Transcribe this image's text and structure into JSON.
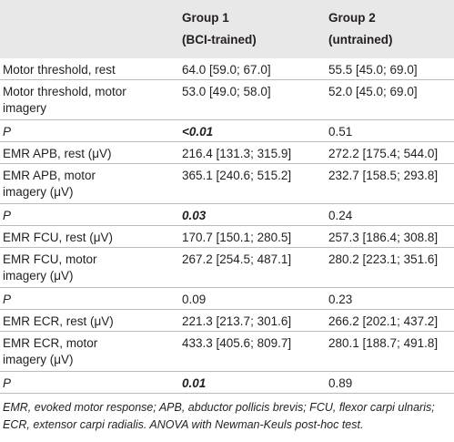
{
  "header": {
    "group1_line1": "Group 1",
    "group1_line2": "(BCI-trained)",
    "group2_line1": "Group 2",
    "group2_line2": "(untrained)"
  },
  "rows": [
    {
      "label": "Motor threshold, rest",
      "g1": "64.0 [59.0; 67.0]",
      "g2": "55.5 [45.0; 69.0]"
    },
    {
      "label": "Motor threshold, motor",
      "label2": "imagery",
      "g1": "53.0 [49.0; 58.0]",
      "g2": "52.0 [45.0; 69.0]"
    },
    {
      "label": "P",
      "g1": "<0.01",
      "g2": "0.51"
    },
    {
      "label": "EMR APB, rest (μV)",
      "g1": "216.4 [131.3; 315.9]",
      "g2": "272.2 [175.4; 544.0]"
    },
    {
      "label": "EMR APB, motor",
      "label2": "imagery (μV)",
      "g1": "365.1 [240.6; 515.2]",
      "g2": "232.7 [158.5; 293.8]"
    },
    {
      "label": "P",
      "g1": "0.03",
      "g2": "0.24"
    },
    {
      "label": "EMR FCU, rest (μV)",
      "g1": "170.7 [150.1; 280.5]",
      "g2": "257.3 [186.4; 308.8]"
    },
    {
      "label": "EMR FCU, motor",
      "label2": "imagery (μV)",
      "g1": "267.2 [254.5; 487.1]",
      "g2": "280.2 [223.1; 351.6]"
    },
    {
      "label": "P",
      "g1": "0.09",
      "g2": "0.23"
    },
    {
      "label": "EMR ECR, rest (μV)",
      "g1": "221.3 [213.7; 301.6]",
      "g2": "266.2 [202.1; 437.2]"
    },
    {
      "label": "EMR ECR, motor",
      "label2": "imagery (μV)",
      "g1": "433.3 [405.6; 809.7]",
      "g2": "280.1 [188.7; 491.8]"
    },
    {
      "label": "P",
      "g1": "0.01",
      "g2": "0.89"
    }
  ],
  "footnote": "EMR, evoked motor response; APB, abductor pollicis brevis; FCU, flexor carpi ulnaris; ECR, extensor carpi radialis. ANOVA with Newman-Keuls post-hoc test."
}
